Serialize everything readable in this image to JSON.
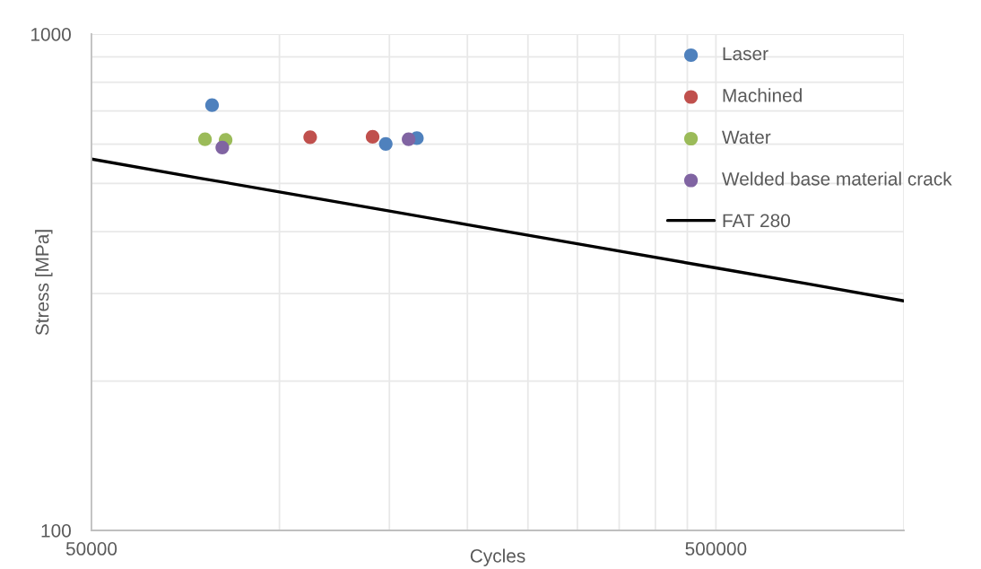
{
  "chart_data": {
    "type": "scatter",
    "xlabel": "Cycles",
    "ylabel": "Stress [MPa]",
    "log": "xy",
    "xlim": [
      50000,
      1000000
    ],
    "ylim": [
      100,
      1000
    ],
    "xticks": [
      50000,
      {
        "value": 100000,
        "label": null
      },
      {
        "value": 150000,
        "label": null
      },
      {
        "value": 200000,
        "label": null
      },
      {
        "value": 250000,
        "label": null
      },
      {
        "value": 300000,
        "label": null
      },
      {
        "value": 350000,
        "label": null
      },
      {
        "value": 400000,
        "label": null
      },
      {
        "value": 450000,
        "label": null
      },
      500000,
      {
        "value": 1000000,
        "label": null
      }
    ],
    "yticks": [
      100,
      {
        "value": 200,
        "label": null
      },
      {
        "value": 300,
        "label": null
      },
      {
        "value": 400,
        "label": null
      },
      {
        "value": 500,
        "label": null
      },
      {
        "value": 600,
        "label": null
      },
      {
        "value": 700,
        "label": null
      },
      {
        "value": 800,
        "label": null
      },
      {
        "value": 900,
        "label": null
      },
      1000
    ],
    "grid": true,
    "legend": "top right",
    "marker": "circle",
    "series": [
      {
        "name": "Laser",
        "color": "#4f81bd",
        "x": [
          78000,
          148000,
          166000
        ],
        "values": [
          719,
          601,
          617
        ]
      },
      {
        "name": "Machined",
        "color": "#c0504d",
        "x": [
          112000,
          141000
        ],
        "values": [
          620,
          621
        ]
      },
      {
        "name": "Water",
        "color": "#9bbb59",
        "x": [
          76000,
          82000
        ],
        "values": [
          614,
          612
        ]
      },
      {
        "name": "Welded base material crack",
        "color": "#8064a2",
        "x": [
          81000,
          161000
        ],
        "values": [
          591,
          614
        ]
      },
      {
        "name": "FAT 280",
        "type": "line",
        "color": "#000000",
        "marker": "none",
        "line_style": "solid",
        "x": [
          50000,
          75000,
          100000,
          150000,
          200000,
          300000,
          500000,
          700000,
          1000000
        ],
        "values": [
          560,
          512,
          481,
          440,
          413,
          378,
          338,
          314,
          290
        ]
      }
    ]
  }
}
